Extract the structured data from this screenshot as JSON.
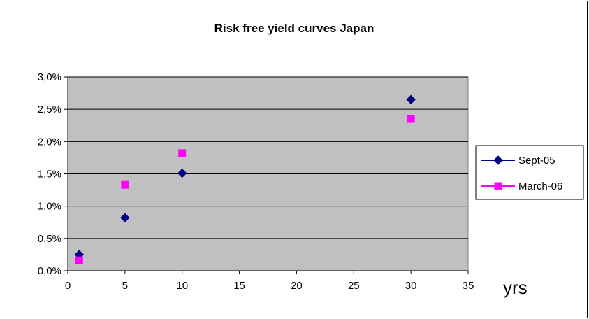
{
  "chart_data": {
    "type": "scatter",
    "title": "Risk free yield curves Japan",
    "xlabel": "yrs",
    "ylabel": "",
    "xlim": [
      0,
      35
    ],
    "ylim": [
      0,
      0.03
    ],
    "x_ticks": [
      0,
      5,
      10,
      15,
      20,
      25,
      30,
      35
    ],
    "x_tick_labels": [
      "0",
      "5",
      "10",
      "15",
      "20",
      "25",
      "30",
      "35"
    ],
    "y_ticks": [
      0,
      0.005,
      0.01,
      0.015,
      0.02,
      0.025,
      0.03
    ],
    "y_tick_labels": [
      "0,0%",
      "0,5%",
      "1,0%",
      "1,5%",
      "2,0%",
      "2,5%",
      "3,0%"
    ],
    "grid": "horizontal",
    "plot_background": "#C0C0C0",
    "legend_position": "right",
    "series": [
      {
        "name": "Sept-05",
        "marker": "diamond",
        "color": "#000080",
        "x": [
          1,
          5,
          10,
          30
        ],
        "y": [
          0.0025,
          0.0082,
          0.0151,
          0.0265
        ]
      },
      {
        "name": "March-06",
        "marker": "square",
        "color": "#FF00FF",
        "x": [
          1,
          5,
          10,
          30
        ],
        "y": [
          0.0016,
          0.0133,
          0.0182,
          0.0235
        ]
      }
    ]
  }
}
